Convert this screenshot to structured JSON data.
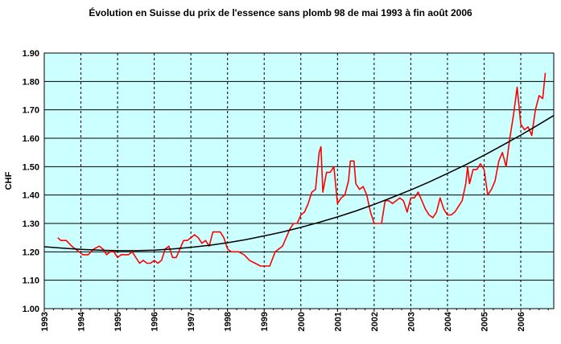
{
  "chart_data": {
    "type": "line",
    "title": "Évolution en Suisse du prix de l'essence sans plomb 98 de mai 1993 à fin août 2006",
    "xlabel": "",
    "ylabel": "CHF",
    "xlim": [
      1993.0,
      2006.9
    ],
    "ylim": [
      1.0,
      1.9
    ],
    "y_ticks": [
      "1.00",
      "1.10",
      "1.20",
      "1.30",
      "1.40",
      "1.50",
      "1.60",
      "1.70",
      "1.80",
      "1.90"
    ],
    "x_ticks": [
      "1993",
      "1994",
      "1995",
      "1996",
      "1997",
      "1998",
      "1999",
      "2000",
      "2001",
      "2002",
      "2003",
      "2004",
      "2005",
      "2006"
    ],
    "grid": true,
    "plot_background": "#ccffff",
    "series": [
      {
        "color": "#ff0000",
        "x": [
          1993.37,
          1993.45,
          1993.6,
          1993.75,
          1993.85,
          1993.95,
          1994.05,
          1994.2,
          1994.35,
          1994.5,
          1994.6,
          1994.7,
          1994.8,
          1994.9,
          1995.0,
          1995.1,
          1995.2,
          1995.3,
          1995.4,
          1995.5,
          1995.6,
          1995.7,
          1995.8,
          1995.9,
          1996.0,
          1996.1,
          1996.2,
          1996.3,
          1996.4,
          1996.5,
          1996.6,
          1996.7,
          1996.8,
          1996.9,
          1997.0,
          1997.1,
          1997.2,
          1997.3,
          1997.4,
          1997.5,
          1997.6,
          1997.7,
          1997.8,
          1997.9,
          1998.0,
          1998.1,
          1998.2,
          1998.3,
          1998.45,
          1998.6,
          1998.75,
          1998.9,
          1999.0,
          1999.15,
          1999.3,
          1999.4,
          1999.5,
          1999.6,
          1999.7,
          1999.8,
          1999.9,
          2000.0,
          2000.1,
          2000.2,
          2000.3,
          2000.4,
          2000.5,
          2000.55,
          2000.6,
          2000.7,
          2000.8,
          2000.85,
          2000.9,
          2001.0,
          2001.1,
          2001.2,
          2001.3,
          2001.35,
          2001.45,
          2001.5,
          2001.6,
          2001.7,
          2001.8,
          2001.9,
          2002.0,
          2002.1,
          2002.2,
          2002.3,
          2002.4,
          2002.5,
          2002.6,
          2002.7,
          2002.8,
          2002.9,
          2003.0,
          2003.1,
          2003.2,
          2003.3,
          2003.4,
          2003.5,
          2003.6,
          2003.7,
          2003.8,
          2003.9,
          2004.0,
          2004.1,
          2004.2,
          2004.3,
          2004.4,
          2004.5,
          2004.55,
          2004.6,
          2004.7,
          2004.8,
          2004.9,
          2005.0,
          2005.1,
          2005.2,
          2005.3,
          2005.4,
          2005.5,
          2005.6,
          2005.7,
          2005.8,
          2005.9,
          2006.0,
          2006.1,
          2006.2,
          2006.3,
          2006.4,
          2006.5,
          2006.6,
          2006.67
        ],
        "y": [
          1.25,
          1.24,
          1.24,
          1.22,
          1.21,
          1.2,
          1.19,
          1.19,
          1.21,
          1.22,
          1.21,
          1.19,
          1.2,
          1.2,
          1.18,
          1.19,
          1.19,
          1.19,
          1.2,
          1.18,
          1.16,
          1.17,
          1.16,
          1.16,
          1.17,
          1.16,
          1.17,
          1.21,
          1.22,
          1.18,
          1.18,
          1.21,
          1.24,
          1.24,
          1.25,
          1.26,
          1.25,
          1.23,
          1.24,
          1.22,
          1.27,
          1.27,
          1.27,
          1.25,
          1.21,
          1.2,
          1.2,
          1.2,
          1.19,
          1.17,
          1.16,
          1.15,
          1.15,
          1.15,
          1.2,
          1.21,
          1.22,
          1.25,
          1.28,
          1.3,
          1.3,
          1.33,
          1.34,
          1.37,
          1.41,
          1.42,
          1.55,
          1.57,
          1.41,
          1.48,
          1.48,
          1.49,
          1.5,
          1.37,
          1.39,
          1.4,
          1.45,
          1.52,
          1.52,
          1.44,
          1.42,
          1.43,
          1.4,
          1.34,
          1.3,
          1.3,
          1.3,
          1.38,
          1.38,
          1.37,
          1.38,
          1.39,
          1.38,
          1.34,
          1.39,
          1.39,
          1.41,
          1.38,
          1.35,
          1.33,
          1.32,
          1.34,
          1.39,
          1.35,
          1.33,
          1.33,
          1.34,
          1.36,
          1.38,
          1.44,
          1.5,
          1.44,
          1.49,
          1.49,
          1.51,
          1.49,
          1.4,
          1.42,
          1.45,
          1.52,
          1.55,
          1.5,
          1.6,
          1.68,
          1.78,
          1.65,
          1.63,
          1.64,
          1.61,
          1.7,
          1.75,
          1.74,
          1.83
        ]
      },
      {
        "color": "#000000",
        "x": [
          1993.0,
          1993.5,
          1994.0,
          1994.5,
          1995.0,
          1995.5,
          1996.0,
          1996.5,
          1997.0,
          1997.5,
          1998.0,
          1998.5,
          1999.0,
          1999.5,
          2000.0,
          2000.5,
          2001.0,
          2001.5,
          2002.0,
          2002.5,
          2003.0,
          2003.5,
          2004.0,
          2004.5,
          2005.0,
          2005.5,
          2006.0,
          2006.5,
          2006.9
        ],
        "y": [
          1.218,
          1.213,
          1.209,
          1.206,
          1.204,
          1.204,
          1.206,
          1.21,
          1.216,
          1.223,
          1.232,
          1.243,
          1.256,
          1.27,
          1.286,
          1.304,
          1.323,
          1.344,
          1.367,
          1.392,
          1.418,
          1.446,
          1.476,
          1.507,
          1.54,
          1.575,
          1.611,
          1.649,
          1.68
        ]
      }
    ]
  }
}
